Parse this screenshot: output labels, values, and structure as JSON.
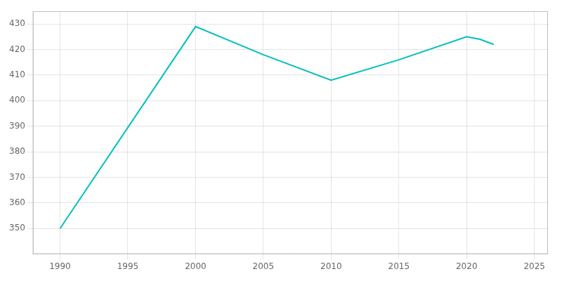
{
  "chart_data": {
    "type": "line",
    "x": [
      1990,
      2000,
      2005,
      2010,
      2015,
      2020,
      2021,
      2022
    ],
    "values": [
      350,
      429,
      418,
      408,
      416,
      425,
      424,
      422
    ],
    "color": "#00BFBF",
    "xlim": [
      1988,
      2026
    ],
    "xticks": [
      1990,
      1995,
      2000,
      2005,
      2010,
      2015,
      2020,
      2025
    ],
    "ylim": [
      340,
      435
    ],
    "yticks": [
      350,
      360,
      370,
      380,
      390,
      400,
      410,
      420,
      430
    ],
    "grid": true
  }
}
